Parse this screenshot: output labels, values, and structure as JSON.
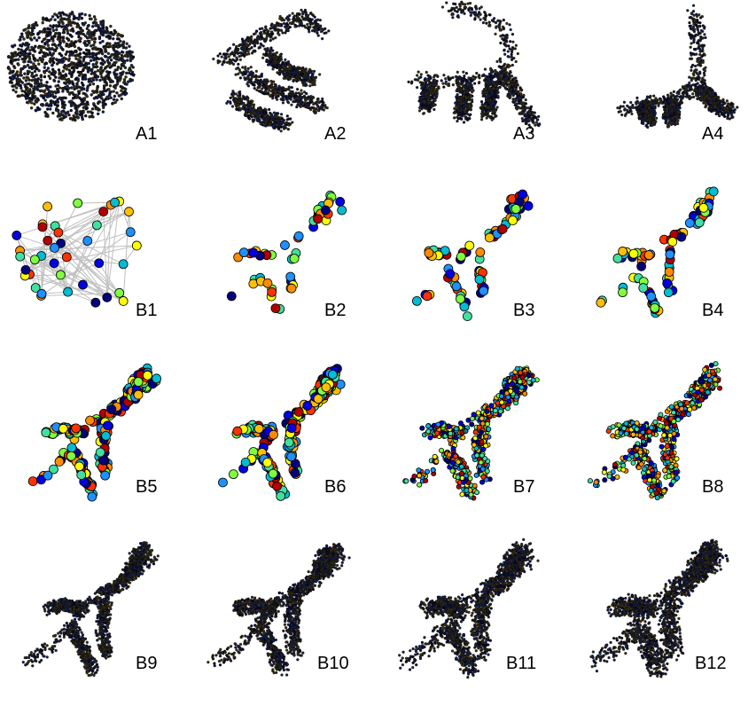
{
  "figure": {
    "panels": [
      {
        "label": "A1",
        "style": "hairball",
        "density": "very-dense"
      },
      {
        "label": "A2",
        "style": "dense-layout",
        "density": "very-dense"
      },
      {
        "label": "A3",
        "style": "dense-layout",
        "density": "very-dense"
      },
      {
        "label": "A4",
        "style": "dense-layout",
        "density": "very-dense"
      },
      {
        "label": "B1",
        "style": "network-with-edges",
        "density": "sparse"
      },
      {
        "label": "B2",
        "style": "colored-nodes",
        "density": "sparse"
      },
      {
        "label": "B3",
        "style": "colored-nodes",
        "density": "medium"
      },
      {
        "label": "B4",
        "style": "colored-nodes",
        "density": "medium"
      },
      {
        "label": "B5",
        "style": "colored-nodes",
        "density": "dense"
      },
      {
        "label": "B6",
        "style": "colored-nodes",
        "density": "dense"
      },
      {
        "label": "B7",
        "style": "colored-nodes",
        "density": "very-dense-colored"
      },
      {
        "label": "B8",
        "style": "colored-nodes",
        "density": "very-dense-colored"
      },
      {
        "label": "B9",
        "style": "dense-layout",
        "density": "very-dense"
      },
      {
        "label": "B10",
        "style": "dense-layout",
        "density": "very-dense"
      },
      {
        "label": "B11",
        "style": "dense-layout",
        "density": "very-dense"
      },
      {
        "label": "B12",
        "style": "dense-layout",
        "density": "very-dense"
      }
    ],
    "node_palette": [
      "#00007f",
      "#0000e0",
      "#1e90ff",
      "#00bcd4",
      "#40e0a0",
      "#7fff3f",
      "#ffff00",
      "#ffbf00",
      "#ff8c00",
      "#ff3300",
      "#b30000"
    ],
    "dense_palette": [
      "#1a1a3a",
      "#202010",
      "#2a2a1a",
      "#10204a",
      "#3a2a10",
      "#0a0a2a"
    ],
    "edge_color": "#bfbfbf"
  }
}
